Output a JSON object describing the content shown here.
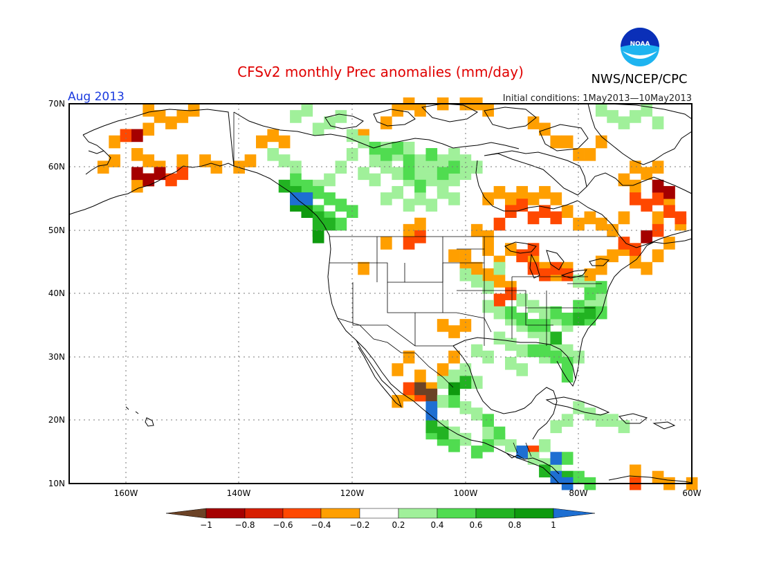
{
  "header": {
    "title": "CFSv2 monthly Prec anomalies (mm/day)",
    "agency": "NWS/NCEP/CPC",
    "logo_text": "NOAA",
    "target_month": "Aug 2013",
    "initial_conditions": "Initial conditions: 1May2013—10May2013"
  },
  "axes": {
    "lat_labels": [
      "70N",
      "60N",
      "50N",
      "40N",
      "30N",
      "20N",
      "10N"
    ],
    "lon_labels": [
      "160W",
      "140W",
      "120W",
      "100W",
      "80W",
      "60W"
    ]
  },
  "colorbar": {
    "tick_labels": [
      "−1",
      "−0.8",
      "−0.6",
      "−0.4",
      "−0.2",
      "0.2",
      "0.4",
      "0.6",
      "0.8",
      "1"
    ],
    "colors": [
      "#6b4226",
      "#a50000",
      "#d71e00",
      "#ff4800",
      "#ff9f00",
      "#ffffff",
      "#a0f09a",
      "#50dc50",
      "#22b322",
      "#0f9a0f",
      "#1e6fd2"
    ]
  },
  "colors": {
    "title": "#e00000",
    "month": "#1a3adf",
    "logo_blue": "#0a2fb8",
    "logo_cyan": "#1eb4f0",
    "coast": "#000000",
    "grid": "#888888"
  },
  "anomaly_regions": [
    {
      "color": "#ff9f00",
      "cells": [
        [
          -156,
          69
        ],
        [
          -154,
          68
        ],
        [
          -152,
          67
        ],
        [
          -150,
          68
        ],
        [
          -148,
          69
        ],
        [
          -156,
          66
        ],
        [
          -160,
          65
        ],
        [
          -162,
          64
        ],
        [
          -164,
          60
        ],
        [
          -162,
          61
        ],
        [
          -158,
          62
        ],
        [
          -156,
          61
        ],
        [
          -154,
          60
        ],
        [
          -150,
          61
        ],
        [
          -146,
          61
        ],
        [
          -144,
          60
        ],
        [
          -158,
          57
        ],
        [
          -156,
          58
        ],
        [
          -140,
          60
        ],
        [
          -138,
          61
        ],
        [
          -136,
          64
        ],
        [
          -134,
          65
        ],
        [
          -132,
          64
        ],
        [
          -118,
          65
        ],
        [
          -114,
          67
        ],
        [
          -112,
          69
        ],
        [
          -110,
          70
        ],
        [
          -108,
          69
        ],
        [
          -104,
          70
        ],
        [
          -100,
          70
        ],
        [
          -98,
          70
        ],
        [
          -96,
          69
        ],
        [
          -88,
          67
        ],
        [
          -86,
          66
        ],
        [
          -84,
          64
        ],
        [
          -80,
          62
        ],
        [
          -78,
          62
        ],
        [
          -82,
          64
        ],
        [
          -76,
          64
        ],
        [
          -70,
          60
        ],
        [
          -72,
          58
        ],
        [
          -70,
          57
        ],
        [
          -68,
          59
        ],
        [
          -66,
          60
        ],
        [
          -96,
          55
        ],
        [
          -94,
          56
        ],
        [
          -92,
          55
        ],
        [
          -90,
          56
        ],
        [
          -88,
          55
        ],
        [
          -86,
          56
        ],
        [
          -84,
          55
        ],
        [
          -82,
          53
        ],
        [
          -80,
          51
        ],
        [
          -78,
          52
        ],
        [
          -76,
          51
        ],
        [
          -74,
          50
        ],
        [
          -72,
          52
        ],
        [
          -98,
          50
        ],
        [
          -96,
          47
        ],
        [
          -94,
          45
        ],
        [
          -92,
          47
        ],
        [
          -90,
          46
        ],
        [
          -88,
          45
        ],
        [
          -86,
          44
        ],
        [
          -84,
          43
        ],
        [
          -82,
          44
        ],
        [
          -80,
          42
        ],
        [
          -78,
          43
        ],
        [
          -76,
          44
        ],
        [
          -96,
          43
        ],
        [
          -94,
          42
        ],
        [
          -92,
          41
        ],
        [
          -100,
          46
        ],
        [
          -98,
          44
        ],
        [
          -96,
          49
        ],
        [
          -100,
          44
        ],
        [
          -102,
          46
        ],
        [
          -114,
          48
        ],
        [
          -118,
          44
        ],
        [
          -110,
          50
        ],
        [
          -108,
          51
        ],
        [
          -106,
          25
        ],
        [
          -108,
          27
        ],
        [
          -112,
          28
        ],
        [
          -110,
          30
        ],
        [
          -104,
          28
        ],
        [
          -102,
          30
        ],
        [
          -104,
          35
        ],
        [
          -102,
          34
        ],
        [
          -100,
          35
        ],
        [
          -112,
          23
        ],
        [
          -110,
          24
        ],
        [
          -66,
          52
        ],
        [
          -64,
          54
        ],
        [
          -62,
          51
        ],
        [
          -64,
          48
        ],
        [
          -66,
          46
        ],
        [
          -68,
          44
        ],
        [
          -70,
          45
        ],
        [
          -72,
          47
        ],
        [
          -74,
          46
        ],
        [
          -76,
          45
        ],
        [
          -70,
          12
        ],
        [
          -66,
          11
        ],
        [
          -64,
          10
        ],
        [
          -60,
          10
        ]
      ]
    },
    {
      "color": "#ff4800",
      "cells": [
        [
          -156,
          58
        ],
        [
          -154,
          59
        ],
        [
          -152,
          58
        ],
        [
          -150,
          59
        ],
        [
          -160,
          65
        ],
        [
          -92,
          53
        ],
        [
          -90,
          54
        ],
        [
          -88,
          52
        ],
        [
          -86,
          53
        ],
        [
          -84,
          52
        ],
        [
          -94,
          51
        ],
        [
          -94,
          39
        ],
        [
          -92,
          40
        ],
        [
          -88,
          44
        ],
        [
          -86,
          43
        ],
        [
          -84,
          44
        ],
        [
          -82,
          43
        ],
        [
          -88,
          47
        ],
        [
          -90,
          46
        ],
        [
          -110,
          48
        ],
        [
          -108,
          49
        ],
        [
          -70,
          55
        ],
        [
          -68,
          54
        ],
        [
          -66,
          55
        ],
        [
          -64,
          56
        ],
        [
          -62,
          52
        ],
        [
          -64,
          53
        ],
        [
          -72,
          48
        ],
        [
          -70,
          47
        ],
        [
          -68,
          49
        ],
        [
          -66,
          50
        ],
        [
          -110,
          25
        ],
        [
          -108,
          24
        ],
        [
          -88,
          15
        ],
        [
          -70,
          10
        ]
      ]
    },
    {
      "color": "#a50000",
      "cells": [
        [
          -158,
          59
        ],
        [
          -156,
          58
        ],
        [
          -154,
          59
        ],
        [
          -158,
          65
        ],
        [
          -66,
          57
        ],
        [
          -64,
          56
        ],
        [
          -68,
          49
        ]
      ]
    },
    {
      "color": "#6b4226",
      "cells": [
        [
          -108,
          25
        ],
        [
          -106,
          24
        ]
      ]
    },
    {
      "color": "#a0f09a",
      "cells": [
        [
          -130,
          68
        ],
        [
          -128,
          69
        ],
        [
          -126,
          66
        ],
        [
          -124,
          67
        ],
        [
          -122,
          68
        ],
        [
          -120,
          65
        ],
        [
          -118,
          64
        ],
        [
          -114,
          63
        ],
        [
          -112,
          62
        ],
        [
          -110,
          63
        ],
        [
          -108,
          61
        ],
        [
          -106,
          60
        ],
        [
          -104,
          61
        ],
        [
          -102,
          62
        ],
        [
          -100,
          61
        ],
        [
          -98,
          60
        ],
        [
          -116,
          61
        ],
        [
          -114,
          60
        ],
        [
          -112,
          59
        ],
        [
          -110,
          58
        ],
        [
          -108,
          59
        ],
        [
          -106,
          58
        ],
        [
          -104,
          57
        ],
        [
          -102,
          58
        ],
        [
          -100,
          59
        ],
        [
          -118,
          59
        ],
        [
          -116,
          58
        ],
        [
          -114,
          55
        ],
        [
          -112,
          56
        ],
        [
          -110,
          54
        ],
        [
          -108,
          55
        ],
        [
          -106,
          54
        ],
        [
          -104,
          56
        ],
        [
          -102,
          55
        ],
        [
          -120,
          62
        ],
        [
          -122,
          60
        ],
        [
          -124,
          58
        ],
        [
          -126,
          57
        ],
        [
          -128,
          56
        ],
        [
          -130,
          60
        ],
        [
          -132,
          61
        ],
        [
          -134,
          62
        ],
        [
          -76,
          69
        ],
        [
          -74,
          68
        ],
        [
          -72,
          67
        ],
        [
          -70,
          68
        ],
        [
          -68,
          69
        ],
        [
          -66,
          67
        ],
        [
          -100,
          43
        ],
        [
          -98,
          42
        ],
        [
          -96,
          41
        ],
        [
          -94,
          44
        ],
        [
          -96,
          38
        ],
        [
          -94,
          37
        ],
        [
          -92,
          36
        ],
        [
          -90,
          35
        ],
        [
          -88,
          34
        ],
        [
          -86,
          33
        ],
        [
          -84,
          32
        ],
        [
          -82,
          31
        ],
        [
          -80,
          30
        ],
        [
          -82,
          35
        ],
        [
          -80,
          37
        ],
        [
          -78,
          38
        ],
        [
          -76,
          39
        ],
        [
          -78,
          41
        ],
        [
          -80,
          42
        ],
        [
          -90,
          39
        ],
        [
          -88,
          38
        ],
        [
          -86,
          37
        ],
        [
          -84,
          36
        ],
        [
          -94,
          33
        ],
        [
          -92,
          32
        ],
        [
          -90,
          31
        ],
        [
          -92,
          29
        ],
        [
          -90,
          28
        ],
        [
          -86,
          30
        ],
        [
          -98,
          31
        ],
        [
          -96,
          30
        ],
        [
          -100,
          28
        ],
        [
          -98,
          26
        ],
        [
          -102,
          27
        ],
        [
          -104,
          26
        ],
        [
          -102,
          24
        ],
        [
          -100,
          22
        ],
        [
          -98,
          21
        ],
        [
          -96,
          18
        ],
        [
          -94,
          17
        ],
        [
          -92,
          16
        ],
        [
          -90,
          15
        ],
        [
          -88,
          14
        ],
        [
          -86,
          13
        ],
        [
          -84,
          12
        ],
        [
          -86,
          16
        ],
        [
          -84,
          19
        ],
        [
          -82,
          20
        ],
        [
          -80,
          22
        ],
        [
          -78,
          21
        ],
        [
          -76,
          20
        ],
        [
          -74,
          20
        ],
        [
          -72,
          19
        ],
        [
          -104,
          19
        ],
        [
          -102,
          18
        ],
        [
          -100,
          17
        ],
        [
          -106,
          21
        ],
        [
          -104,
          23
        ]
      ]
    },
    {
      "color": "#50dc50",
      "cells": [
        [
          -130,
          58
        ],
        [
          -128,
          57
        ],
        [
          -126,
          56
        ],
        [
          -124,
          55
        ],
        [
          -122,
          54
        ],
        [
          -120,
          53
        ],
        [
          -128,
          54
        ],
        [
          -126,
          53
        ],
        [
          -124,
          52
        ],
        [
          -122,
          51
        ],
        [
          -116,
          63
        ],
        [
          -114,
          62
        ],
        [
          -112,
          63
        ],
        [
          -110,
          61
        ],
        [
          -106,
          62
        ],
        [
          -104,
          59
        ],
        [
          -102,
          60
        ],
        [
          -108,
          57
        ],
        [
          -110,
          59
        ],
        [
          -92,
          37
        ],
        [
          -90,
          36
        ],
        [
          -88,
          35
        ],
        [
          -86,
          35
        ],
        [
          -84,
          37
        ],
        [
          -82,
          36
        ],
        [
          -80,
          38
        ],
        [
          -78,
          36
        ],
        [
          -76,
          37
        ],
        [
          -78,
          40
        ],
        [
          -76,
          41
        ],
        [
          -86,
          31
        ],
        [
          -84,
          30
        ],
        [
          -82,
          29
        ],
        [
          -88,
          31
        ],
        [
          -82,
          27
        ],
        [
          -106,
          18
        ],
        [
          -104,
          17
        ],
        [
          -102,
          16
        ],
        [
          -98,
          15
        ],
        [
          -96,
          16
        ],
        [
          -100,
          26
        ],
        [
          -102,
          23
        ],
        [
          -96,
          20
        ],
        [
          -94,
          18
        ],
        [
          -82,
          14
        ],
        [
          -80,
          11
        ],
        [
          -78,
          10
        ]
      ]
    },
    {
      "color": "#22b322",
      "cells": [
        [
          -132,
          57
        ],
        [
          -130,
          56
        ],
        [
          -128,
          55
        ],
        [
          -126,
          52
        ],
        [
          -124,
          51
        ],
        [
          -126,
          50
        ],
        [
          -80,
          36
        ],
        [
          -78,
          37
        ],
        [
          -84,
          33
        ],
        [
          -106,
          19
        ],
        [
          -104,
          18
        ],
        [
          -100,
          26
        ],
        [
          -86,
          12
        ],
        [
          -82,
          11
        ]
      ]
    },
    {
      "color": "#0f9a0f",
      "cells": [
        [
          -130,
          54
        ],
        [
          -128,
          53
        ],
        [
          -126,
          49
        ],
        [
          -102,
          25
        ]
      ]
    },
    {
      "color": "#1e6fd2",
      "cells": [
        [
          -130,
          55
        ],
        [
          -128,
          55
        ],
        [
          -106,
          21
        ],
        [
          -106,
          22
        ],
        [
          -90,
          15
        ],
        [
          -84,
          14
        ],
        [
          -84,
          11
        ],
        [
          -82,
          10
        ]
      ]
    }
  ]
}
